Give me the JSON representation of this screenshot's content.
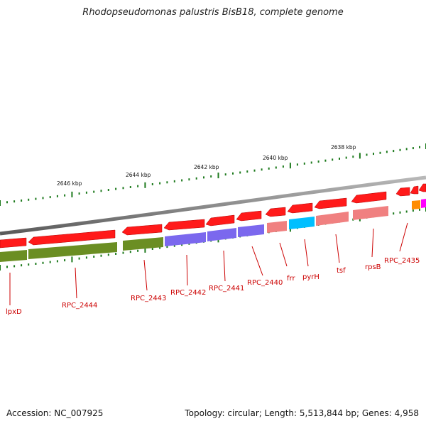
{
  "title": "Rhodopseudomonas palustris BisB18, complete genome",
  "footer": {
    "accession": "Accession: NC_007925",
    "summary": "Topology: circular; Length: 5,513,844 bp; Genes: 4,958"
  },
  "colors": {
    "backbone": "#8c8c8c",
    "tick": "#1d7a1d",
    "gene_label": "#cc0000"
  },
  "scale": {
    "unit": "kbp",
    "labels": [
      "2646 kbp",
      "2644 kbp",
      "2642 kbp",
      "2640 kbp",
      "2638 kbp"
    ]
  },
  "genes": [
    {
      "id": "lpxD",
      "label": "lpxD",
      "strand": "reverse",
      "color": "#ff1a1a"
    },
    {
      "id": "RPC_2444",
      "label": "RPC_2444",
      "strand": "reverse",
      "color": "#ff1a1a"
    },
    {
      "id": "RPC_2443",
      "label": "RPC_2443",
      "strand": "reverse",
      "color": "#ff1a1a"
    },
    {
      "id": "RPC_2442",
      "label": "RPC_2442",
      "strand": "reverse",
      "color": "#ff1a1a"
    },
    {
      "id": "RPC_2441",
      "label": "RPC_2441",
      "strand": "reverse",
      "color": "#ff1a1a"
    },
    {
      "id": "RPC_2440",
      "label": "RPC_2440",
      "strand": "reverse",
      "color": "#ff1a1a"
    },
    {
      "id": "frr",
      "label": "frr",
      "strand": "reverse",
      "color": "#ff1a1a"
    },
    {
      "id": "pyrH",
      "label": "pyrH",
      "strand": "reverse",
      "color": "#ff1a1a"
    },
    {
      "id": "tsf",
      "label": "tsf",
      "strand": "reverse",
      "color": "#ff1a1a"
    },
    {
      "id": "rpsB",
      "label": "rpsB",
      "strand": "reverse",
      "color": "#ff1a1a"
    },
    {
      "id": "RPC_2435",
      "label": "RPC_2435",
      "strand": "reverse",
      "color": "#ff1a1a"
    }
  ],
  "cog_colors": [
    "#6b8e23",
    "#7b68ee",
    "#f08080",
    "#00bfff",
    "#ff8c00",
    "#ff00ff"
  ]
}
